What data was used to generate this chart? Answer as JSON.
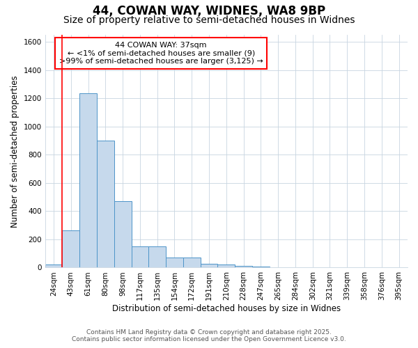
{
  "title1": "44, COWAN WAY, WIDNES, WA8 9BP",
  "title2": "Size of property relative to semi-detached houses in Widnes",
  "xlabel": "Distribution of semi-detached houses by size in Widnes",
  "ylabel": "Number of semi-detached properties",
  "footnote1": "Contains HM Land Registry data © Crown copyright and database right 2025.",
  "footnote2": "Contains public sector information licensed under the Open Government Licence v3.0.",
  "annotation_title": "44 COWAN WAY: 37sqm",
  "annotation_line1": "← <1% of semi-detached houses are smaller (9)",
  "annotation_line2": ">99% of semi-detached houses are larger (3,125) →",
  "bin_labels": [
    "24sqm",
    "43sqm",
    "61sqm",
    "80sqm",
    "98sqm",
    "117sqm",
    "135sqm",
    "154sqm",
    "172sqm",
    "191sqm",
    "210sqm",
    "228sqm",
    "247sqm",
    "265sqm",
    "284sqm",
    "302sqm",
    "321sqm",
    "339sqm",
    "358sqm",
    "376sqm",
    "395sqm"
  ],
  "bar_heights": [
    20,
    265,
    1235,
    900,
    470,
    150,
    150,
    70,
    70,
    25,
    20,
    10,
    5,
    2,
    0,
    0,
    0,
    0,
    0,
    0,
    0
  ],
  "bar_color": "#c6d9ec",
  "bar_edge_color": "#4d94c8",
  "red_line_x": 0.5,
  "ylim": [
    0,
    1650
  ],
  "yticks": [
    0,
    200,
    400,
    600,
    800,
    1000,
    1200,
    1400,
    1600
  ],
  "bg_color": "#ffffff",
  "plot_bg_color": "#ffffff",
  "grid_color": "#c8d4e0",
  "title_fontsize": 12,
  "subtitle_fontsize": 10,
  "axis_label_fontsize": 8.5,
  "tick_fontsize": 7.5,
  "footnote_fontsize": 6.5,
  "annotation_fontsize": 8
}
